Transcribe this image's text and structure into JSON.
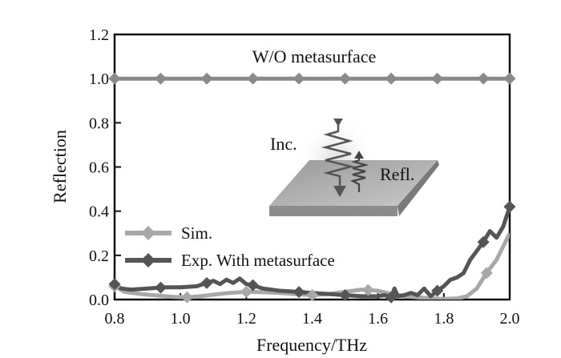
{
  "chart_data": {
    "type": "line",
    "title": "",
    "xlabel": "Frequency/THz",
    "ylabel": "Reflection",
    "xlim": [
      0.8,
      2.0
    ],
    "ylim": [
      0.0,
      1.2
    ],
    "xticks": [
      "0.8",
      "1.0",
      "1.2",
      "1.4",
      "1.6",
      "1.8",
      "2.0"
    ],
    "yticks": [
      "0.0",
      "0.2",
      "0.4",
      "0.6",
      "0.8",
      "1.0",
      "1.2"
    ],
    "grid": false,
    "legend_position": "center-left",
    "annotations": {
      "top_label": "W/O metasurface",
      "inset_incident": "Inc.",
      "inset_reflected": "Refl."
    },
    "series": [
      {
        "name": "W/O metasurface",
        "color": "#8a8a8a",
        "marker": "diamond",
        "x": [
          0.8,
          0.94,
          1.08,
          1.22,
          1.36,
          1.5,
          1.64,
          1.78,
          1.92,
          2.0
        ],
        "y": [
          1.0,
          1.0,
          1.0,
          1.0,
          1.0,
          1.0,
          1.0,
          1.0,
          1.0,
          1.0
        ],
        "markers_x": [
          0.8,
          0.94,
          1.08,
          1.22,
          1.36,
          1.5,
          1.64,
          1.78,
          1.92,
          2.0
        ]
      },
      {
        "name": "Sim.",
        "color": "#a8a8a8",
        "marker": "diamond",
        "x": [
          0.8,
          0.83,
          0.88,
          0.93,
          0.98,
          1.02,
          1.06,
          1.1,
          1.15,
          1.2,
          1.25,
          1.3,
          1.35,
          1.4,
          1.45,
          1.5,
          1.55,
          1.6,
          1.64,
          1.68,
          1.72,
          1.76,
          1.8,
          1.84,
          1.87,
          1.9,
          1.93,
          1.96,
          2.0
        ],
        "y": [
          0.06,
          0.035,
          0.025,
          0.018,
          0.012,
          0.01,
          0.015,
          0.022,
          0.03,
          0.035,
          0.033,
          0.03,
          0.025,
          0.02,
          0.025,
          0.035,
          0.045,
          0.04,
          0.025,
          0.015,
          0.01,
          0.005,
          0.003,
          0.005,
          0.015,
          0.05,
          0.12,
          0.18,
          0.3
        ],
        "markers_x": [
          0.8,
          1.02,
          1.2,
          1.4,
          1.57,
          1.93
        ]
      },
      {
        "name": "Exp. With metasurface",
        "color": "#555555",
        "marker": "diamond",
        "x": [
          0.8,
          0.82,
          0.85,
          0.9,
          0.95,
          1.0,
          1.05,
          1.08,
          1.1,
          1.12,
          1.14,
          1.16,
          1.18,
          1.2,
          1.22,
          1.25,
          1.3,
          1.35,
          1.4,
          1.45,
          1.5,
          1.55,
          1.6,
          1.62,
          1.64,
          1.65,
          1.66,
          1.68,
          1.7,
          1.72,
          1.74,
          1.76,
          1.78,
          1.8,
          1.82,
          1.84,
          1.86,
          1.88,
          1.9,
          1.92,
          1.94,
          1.96,
          1.98,
          2.0
        ],
        "y": [
          0.07,
          0.05,
          0.045,
          0.05,
          0.055,
          0.055,
          0.06,
          0.075,
          0.085,
          0.07,
          0.09,
          0.075,
          0.095,
          0.07,
          0.065,
          0.05,
          0.04,
          0.035,
          0.03,
          0.025,
          0.02,
          0.015,
          0.015,
          0.02,
          0.01,
          0.05,
          0.015,
          0.02,
          0.03,
          0.02,
          0.05,
          0.015,
          0.04,
          0.06,
          0.09,
          0.1,
          0.12,
          0.18,
          0.22,
          0.26,
          0.31,
          0.28,
          0.33,
          0.42
        ],
        "markers_x": [
          0.8,
          0.94,
          1.08,
          1.22,
          1.36,
          1.5,
          1.64,
          1.78,
          1.92,
          2.0
        ]
      }
    ],
    "legend_entries": [
      "Sim.",
      "Exp. With metasurface"
    ]
  }
}
